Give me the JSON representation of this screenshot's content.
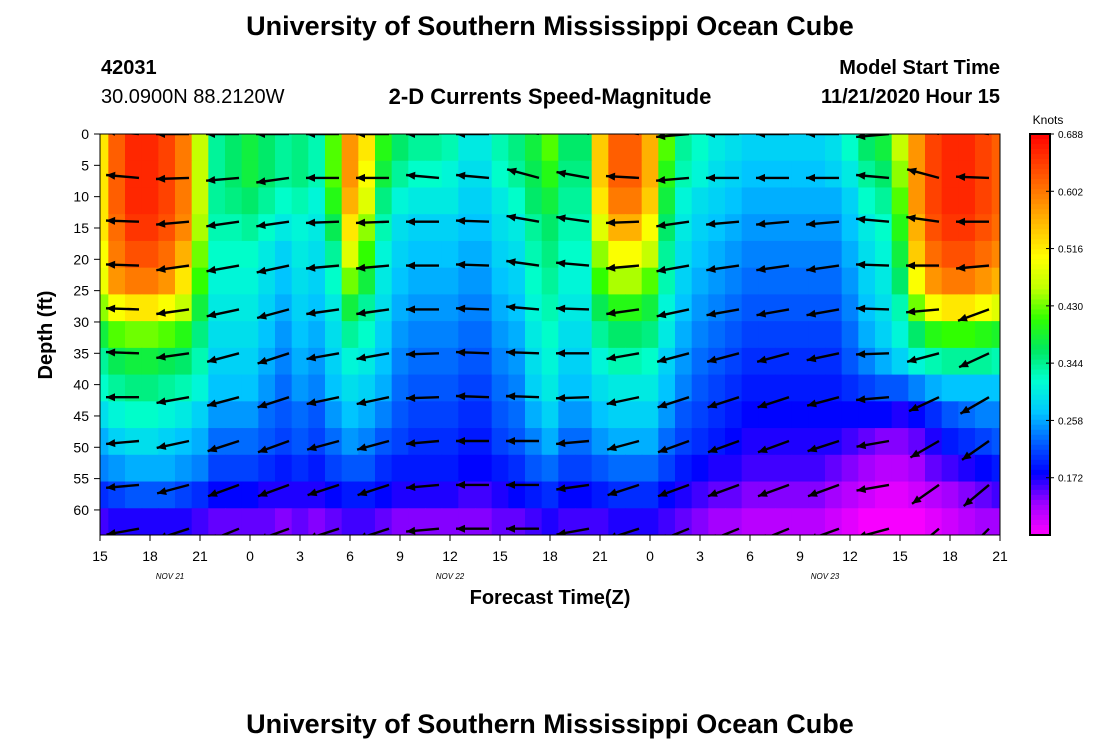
{
  "page_title": "University of Southern Mississippi Ocean Cube",
  "footer_title": "University of Southern Mississippi Ocean Cube",
  "station": {
    "id": "42031",
    "coords": "30.0900N 88.2120W"
  },
  "plot_heading": "2-D Currents Speed-Magnitude",
  "model": {
    "label": "Model Start Time",
    "value": "11/21/2020 Hour 15"
  },
  "chart_data": {
    "type": "heatmap",
    "title": "2-D Currents Speed-Magnitude",
    "xlabel": "Forecast Time(Z)",
    "ylabel": "Depth (ft)",
    "x_ticks": [
      "15",
      "18",
      "21",
      "0",
      "3",
      "6",
      "9",
      "12",
      "15",
      "18",
      "21",
      "0",
      "3",
      "6",
      "9",
      "12",
      "15",
      "18",
      "21"
    ],
    "x_range_hours": [
      0,
      54
    ],
    "date_labels": [
      {
        "text": "NOV  21",
        "hour": 4.2
      },
      {
        "text": "NOV  22",
        "hour": 21
      },
      {
        "text": "NOV  23",
        "hour": 43.5
      }
    ],
    "y_ticks": [
      0,
      5,
      10,
      15,
      20,
      25,
      30,
      35,
      40,
      45,
      50,
      55,
      60
    ],
    "ylim": [
      0,
      64
    ],
    "colorbar": {
      "units": "Knots",
      "ticks": [
        0.688,
        0.602,
        0.516,
        0.43,
        0.344,
        0.258,
        0.172
      ],
      "range": [
        0.086,
        0.688
      ]
    },
    "arrow_hours": [
      1.5,
      4.5,
      7.5,
      10.5,
      13.5,
      16.5,
      19.5,
      22.5,
      25.5,
      28.5,
      31.5,
      34.5,
      37.5,
      40.5,
      43.5,
      46.5,
      49.5,
      52.5
    ],
    "arrow_depths": [
      0,
      7,
      14,
      21,
      28,
      35,
      42,
      49,
      56,
      63
    ],
    "arrow_angles_deg": [
      [
        175,
        180,
        180,
        180,
        180,
        180,
        180,
        180,
        168,
        162,
        172,
        185,
        180,
        180,
        180,
        185,
        162,
        172
      ],
      [
        175,
        182,
        185,
        188,
        180,
        180,
        175,
        175,
        165,
        170,
        177,
        185,
        180,
        180,
        180,
        175,
        165,
        178
      ],
      [
        178,
        185,
        188,
        188,
        182,
        182,
        180,
        178,
        170,
        172,
        182,
        188,
        185,
        185,
        185,
        175,
        172,
        180
      ],
      [
        178,
        188,
        190,
        192,
        185,
        185,
        180,
        178,
        172,
        175,
        185,
        190,
        188,
        188,
        188,
        178,
        180,
        185
      ],
      [
        178,
        188,
        192,
        195,
        188,
        188,
        180,
        178,
        175,
        178,
        188,
        192,
        190,
        190,
        190,
        178,
        185,
        200
      ],
      [
        178,
        188,
        195,
        198,
        190,
        190,
        182,
        178,
        178,
        180,
        190,
        195,
        195,
        195,
        192,
        182,
        195,
        205
      ],
      [
        180,
        190,
        195,
        198,
        192,
        192,
        182,
        178,
        178,
        182,
        192,
        198,
        198,
        198,
        195,
        185,
        205,
        210
      ],
      [
        185,
        192,
        198,
        200,
        195,
        195,
        185,
        180,
        180,
        185,
        195,
        200,
        200,
        200,
        198,
        190,
        210,
        215
      ],
      [
        185,
        195,
        200,
        200,
        198,
        198,
        185,
        180,
        180,
        188,
        198,
        200,
        200,
        200,
        200,
        190,
        215,
        220
      ],
      [
        190,
        198,
        202,
        200,
        198,
        198,
        185,
        180,
        180,
        190,
        198,
        202,
        202,
        202,
        200,
        195,
        220,
        225
      ]
    ],
    "speed_knots": [
      [
        0.52,
        0.62,
        0.66,
        0.66,
        0.64,
        0.6,
        0.46,
        0.34,
        0.36,
        0.38,
        0.36,
        0.34,
        0.35,
        0.33,
        0.42,
        0.58,
        0.52,
        0.4,
        0.36,
        0.34,
        0.34,
        0.33,
        0.3,
        0.3,
        0.33,
        0.35,
        0.38,
        0.42,
        0.36,
        0.36,
        0.54,
        0.62,
        0.62,
        0.56,
        0.42,
        0.34,
        0.32,
        0.3,
        0.29,
        0.28,
        0.28,
        0.28,
        0.28,
        0.28,
        0.29,
        0.32,
        0.36,
        0.38,
        0.46,
        0.58,
        0.64,
        0.66,
        0.66,
        0.64,
        0.62
      ],
      [
        0.52,
        0.62,
        0.66,
        0.66,
        0.64,
        0.6,
        0.46,
        0.34,
        0.36,
        0.38,
        0.36,
        0.34,
        0.35,
        0.33,
        0.42,
        0.58,
        0.5,
        0.38,
        0.34,
        0.32,
        0.32,
        0.31,
        0.29,
        0.29,
        0.32,
        0.34,
        0.37,
        0.4,
        0.35,
        0.35,
        0.54,
        0.62,
        0.62,
        0.56,
        0.4,
        0.33,
        0.31,
        0.29,
        0.28,
        0.27,
        0.27,
        0.27,
        0.27,
        0.27,
        0.28,
        0.3,
        0.34,
        0.36,
        0.44,
        0.58,
        0.64,
        0.66,
        0.66,
        0.64,
        0.62
      ],
      [
        0.52,
        0.62,
        0.66,
        0.66,
        0.64,
        0.6,
        0.46,
        0.34,
        0.35,
        0.36,
        0.34,
        0.32,
        0.33,
        0.31,
        0.4,
        0.56,
        0.48,
        0.35,
        0.31,
        0.3,
        0.3,
        0.3,
        0.28,
        0.28,
        0.3,
        0.32,
        0.36,
        0.38,
        0.34,
        0.34,
        0.52,
        0.6,
        0.6,
        0.54,
        0.38,
        0.31,
        0.29,
        0.28,
        0.27,
        0.26,
        0.26,
        0.26,
        0.26,
        0.26,
        0.26,
        0.28,
        0.32,
        0.34,
        0.42,
        0.58,
        0.64,
        0.66,
        0.66,
        0.64,
        0.62
      ],
      [
        0.52,
        0.61,
        0.65,
        0.65,
        0.63,
        0.59,
        0.45,
        0.33,
        0.33,
        0.34,
        0.32,
        0.3,
        0.31,
        0.3,
        0.37,
        0.52,
        0.44,
        0.33,
        0.29,
        0.28,
        0.28,
        0.28,
        0.27,
        0.27,
        0.29,
        0.3,
        0.34,
        0.36,
        0.33,
        0.33,
        0.48,
        0.56,
        0.56,
        0.5,
        0.36,
        0.3,
        0.28,
        0.27,
        0.26,
        0.25,
        0.25,
        0.25,
        0.25,
        0.25,
        0.25,
        0.27,
        0.3,
        0.32,
        0.4,
        0.56,
        0.63,
        0.65,
        0.65,
        0.63,
        0.61
      ],
      [
        0.5,
        0.6,
        0.63,
        0.63,
        0.61,
        0.56,
        0.43,
        0.32,
        0.32,
        0.32,
        0.3,
        0.28,
        0.3,
        0.29,
        0.34,
        0.48,
        0.41,
        0.31,
        0.28,
        0.27,
        0.27,
        0.27,
        0.26,
        0.26,
        0.28,
        0.29,
        0.33,
        0.35,
        0.32,
        0.32,
        0.44,
        0.5,
        0.5,
        0.46,
        0.34,
        0.29,
        0.27,
        0.26,
        0.25,
        0.24,
        0.24,
        0.24,
        0.24,
        0.24,
        0.24,
        0.26,
        0.29,
        0.31,
        0.38,
        0.54,
        0.61,
        0.63,
        0.63,
        0.61,
        0.59
      ],
      [
        0.49,
        0.58,
        0.6,
        0.6,
        0.58,
        0.52,
        0.41,
        0.31,
        0.31,
        0.31,
        0.29,
        0.27,
        0.29,
        0.28,
        0.32,
        0.43,
        0.38,
        0.3,
        0.27,
        0.26,
        0.26,
        0.26,
        0.25,
        0.25,
        0.27,
        0.28,
        0.32,
        0.34,
        0.31,
        0.31,
        0.41,
        0.45,
        0.45,
        0.42,
        0.33,
        0.28,
        0.26,
        0.25,
        0.24,
        0.23,
        0.23,
        0.23,
        0.23,
        0.23,
        0.23,
        0.25,
        0.28,
        0.3,
        0.36,
        0.5,
        0.58,
        0.6,
        0.6,
        0.58,
        0.56
      ],
      [
        0.44,
        0.5,
        0.52,
        0.52,
        0.5,
        0.46,
        0.38,
        0.3,
        0.3,
        0.3,
        0.28,
        0.26,
        0.28,
        0.27,
        0.3,
        0.38,
        0.34,
        0.29,
        0.26,
        0.25,
        0.25,
        0.25,
        0.24,
        0.24,
        0.26,
        0.27,
        0.31,
        0.33,
        0.3,
        0.3,
        0.37,
        0.4,
        0.4,
        0.38,
        0.31,
        0.27,
        0.25,
        0.24,
        0.23,
        0.22,
        0.22,
        0.22,
        0.22,
        0.22,
        0.22,
        0.24,
        0.27,
        0.29,
        0.33,
        0.43,
        0.5,
        0.52,
        0.52,
        0.5,
        0.48
      ],
      [
        0.38,
        0.42,
        0.43,
        0.43,
        0.42,
        0.4,
        0.35,
        0.29,
        0.29,
        0.29,
        0.27,
        0.25,
        0.27,
        0.26,
        0.29,
        0.34,
        0.32,
        0.28,
        0.25,
        0.24,
        0.24,
        0.24,
        0.23,
        0.23,
        0.25,
        0.26,
        0.3,
        0.32,
        0.29,
        0.29,
        0.34,
        0.36,
        0.36,
        0.35,
        0.3,
        0.26,
        0.24,
        0.23,
        0.22,
        0.21,
        0.21,
        0.21,
        0.21,
        0.21,
        0.21,
        0.23,
        0.26,
        0.28,
        0.31,
        0.36,
        0.4,
        0.41,
        0.41,
        0.4,
        0.39
      ],
      [
        0.34,
        0.37,
        0.38,
        0.38,
        0.37,
        0.36,
        0.33,
        0.28,
        0.28,
        0.28,
        0.26,
        0.24,
        0.26,
        0.25,
        0.28,
        0.31,
        0.3,
        0.27,
        0.24,
        0.23,
        0.23,
        0.23,
        0.22,
        0.22,
        0.24,
        0.25,
        0.29,
        0.31,
        0.28,
        0.28,
        0.31,
        0.33,
        0.33,
        0.32,
        0.28,
        0.25,
        0.23,
        0.22,
        0.21,
        0.2,
        0.2,
        0.2,
        0.2,
        0.2,
        0.2,
        0.22,
        0.24,
        0.26,
        0.28,
        0.31,
        0.33,
        0.34,
        0.34,
        0.34,
        0.33
      ],
      [
        0.32,
        0.34,
        0.35,
        0.35,
        0.34,
        0.33,
        0.31,
        0.27,
        0.27,
        0.27,
        0.25,
        0.23,
        0.25,
        0.24,
        0.27,
        0.29,
        0.28,
        0.26,
        0.23,
        0.22,
        0.22,
        0.22,
        0.21,
        0.21,
        0.23,
        0.24,
        0.28,
        0.3,
        0.27,
        0.27,
        0.29,
        0.3,
        0.3,
        0.3,
        0.27,
        0.24,
        0.22,
        0.21,
        0.2,
        0.19,
        0.19,
        0.19,
        0.19,
        0.19,
        0.19,
        0.2,
        0.21,
        0.22,
        0.22,
        0.24,
        0.26,
        0.27,
        0.27,
        0.27,
        0.27
      ],
      [
        0.29,
        0.31,
        0.32,
        0.32,
        0.31,
        0.3,
        0.28,
        0.25,
        0.25,
        0.25,
        0.23,
        0.22,
        0.23,
        0.22,
        0.25,
        0.27,
        0.26,
        0.24,
        0.22,
        0.21,
        0.21,
        0.21,
        0.2,
        0.2,
        0.22,
        0.23,
        0.26,
        0.28,
        0.25,
        0.25,
        0.27,
        0.28,
        0.28,
        0.28,
        0.25,
        0.22,
        0.21,
        0.2,
        0.19,
        0.18,
        0.18,
        0.18,
        0.18,
        0.18,
        0.18,
        0.18,
        0.18,
        0.18,
        0.17,
        0.18,
        0.2,
        0.22,
        0.23,
        0.24,
        0.24
      ],
      [
        0.26,
        0.28,
        0.29,
        0.29,
        0.28,
        0.27,
        0.26,
        0.23,
        0.23,
        0.23,
        0.22,
        0.21,
        0.22,
        0.21,
        0.23,
        0.25,
        0.24,
        0.22,
        0.21,
        0.2,
        0.2,
        0.2,
        0.19,
        0.19,
        0.21,
        0.22,
        0.24,
        0.26,
        0.23,
        0.23,
        0.25,
        0.26,
        0.26,
        0.26,
        0.23,
        0.21,
        0.2,
        0.19,
        0.18,
        0.17,
        0.17,
        0.17,
        0.17,
        0.17,
        0.17,
        0.16,
        0.15,
        0.14,
        0.14,
        0.15,
        0.17,
        0.19,
        0.2,
        0.21,
        0.22
      ],
      [
        0.24,
        0.25,
        0.26,
        0.26,
        0.26,
        0.25,
        0.24,
        0.21,
        0.21,
        0.21,
        0.2,
        0.19,
        0.2,
        0.19,
        0.21,
        0.22,
        0.22,
        0.2,
        0.19,
        0.19,
        0.19,
        0.19,
        0.18,
        0.18,
        0.19,
        0.2,
        0.22,
        0.23,
        0.21,
        0.21,
        0.22,
        0.23,
        0.23,
        0.23,
        0.21,
        0.19,
        0.18,
        0.17,
        0.17,
        0.16,
        0.16,
        0.16,
        0.16,
        0.16,
        0.15,
        0.14,
        0.13,
        0.12,
        0.12,
        0.13,
        0.15,
        0.16,
        0.17,
        0.18,
        0.19
      ],
      [
        0.2,
        0.21,
        0.22,
        0.22,
        0.22,
        0.21,
        0.2,
        0.18,
        0.18,
        0.18,
        0.17,
        0.17,
        0.17,
        0.17,
        0.18,
        0.19,
        0.19,
        0.18,
        0.17,
        0.17,
        0.17,
        0.17,
        0.16,
        0.16,
        0.17,
        0.18,
        0.19,
        0.2,
        0.18,
        0.18,
        0.19,
        0.2,
        0.2,
        0.2,
        0.18,
        0.17,
        0.16,
        0.15,
        0.15,
        0.14,
        0.14,
        0.14,
        0.14,
        0.14,
        0.13,
        0.12,
        0.11,
        0.1,
        0.1,
        0.11,
        0.12,
        0.13,
        0.14,
        0.15,
        0.16
      ],
      [
        0.16,
        0.17,
        0.17,
        0.17,
        0.17,
        0.17,
        0.16,
        0.15,
        0.15,
        0.15,
        0.15,
        0.14,
        0.15,
        0.14,
        0.15,
        0.16,
        0.16,
        0.15,
        0.14,
        0.14,
        0.14,
        0.14,
        0.14,
        0.14,
        0.15,
        0.15,
        0.16,
        0.17,
        0.16,
        0.16,
        0.16,
        0.17,
        0.17,
        0.17,
        0.16,
        0.15,
        0.14,
        0.13,
        0.13,
        0.12,
        0.12,
        0.12,
        0.12,
        0.12,
        0.11,
        0.1,
        0.09,
        0.09,
        0.09,
        0.09,
        0.1,
        0.11,
        0.12,
        0.13,
        0.13
      ]
    ]
  },
  "colors": {
    "ramp": [
      "#ff00ff",
      "#a000ff",
      "#0000ff",
      "#0060ff",
      "#00c8ff",
      "#00ffd0",
      "#00e860",
      "#30ff00",
      "#c0ff00",
      "#ffff00",
      "#ffc000",
      "#ff8000",
      "#ff4000",
      "#ff0000"
    ],
    "arrow": "#000000"
  }
}
